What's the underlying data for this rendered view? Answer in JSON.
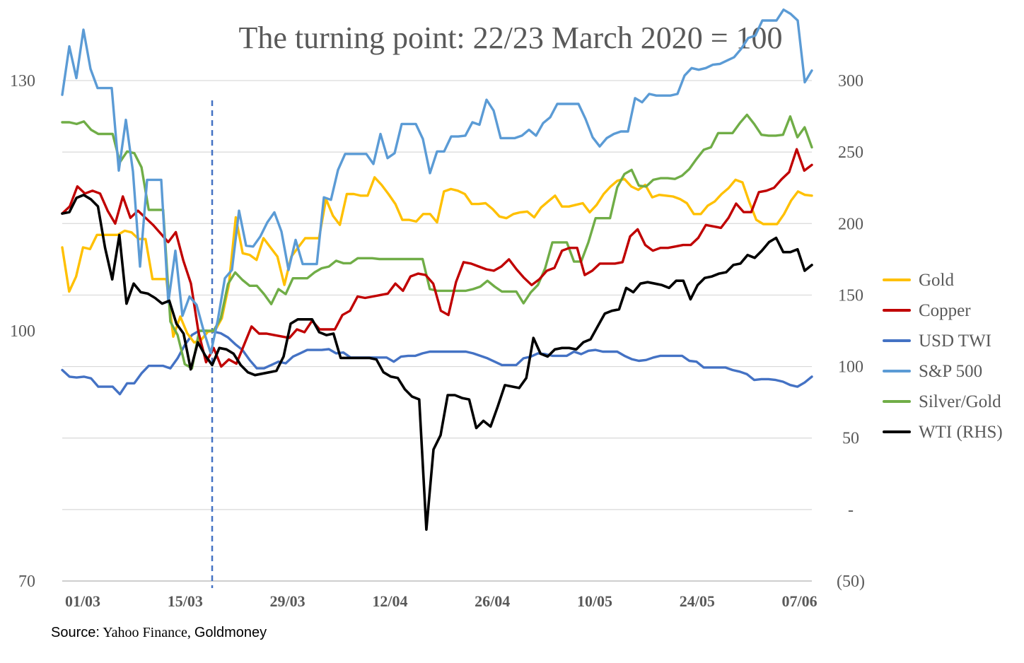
{
  "chart_data": {
    "type": "line",
    "title": "The turning point: 22/23 March 2020 = 100",
    "x_tick_labels": [
      "01/03",
      "15/03",
      "29/03",
      "12/04",
      "26/04",
      "10/05",
      "24/05",
      "07/06"
    ],
    "left_axis": {
      "ticks": [
        "70",
        "100",
        "130"
      ],
      "ylim": [
        70,
        130
      ]
    },
    "right_axis": {
      "ticks": [
        "(50)",
        "-",
        "50",
        "100",
        "150",
        "200",
        "250",
        "300"
      ],
      "ylim": [
        -50,
        300
      ]
    },
    "gridlines": "horizontal",
    "legend_position": "right",
    "marker": {
      "label": "22/23 March 2020 = 100",
      "style": "dashed vertical line",
      "color": "#4472C4"
    },
    "series": [
      {
        "name": "Gold",
        "axis": "left",
        "color": "#FFC000",
        "values": [
          110,
          104.7,
          106.5,
          110,
          109.8,
          111.5,
          111.5,
          111.5,
          111.5,
          112,
          111.8,
          111,
          111,
          106.2,
          106.2,
          106.2,
          99.3,
          101.7,
          99.7,
          98.6,
          98.9,
          99.9,
          100,
          101.5,
          105.5,
          113.6,
          109.3,
          109.1,
          108.5,
          111.1,
          110,
          108.9,
          105.5,
          108.9,
          110,
          111.1,
          111.1,
          111.1,
          115.8,
          113.8,
          112.7,
          116.4,
          116.4,
          116.2,
          116.2,
          118.4,
          117.5,
          116.4,
          115.2,
          113.3,
          113.3,
          113.1,
          114.0,
          114.0,
          113.0,
          116.7,
          117,
          116.8,
          116.4,
          115.2,
          115.2,
          115.3,
          114.6,
          113.7,
          113.5,
          114.0,
          114.2,
          114.3,
          113.6,
          114.8,
          115.5,
          116.2,
          114.9,
          114.9,
          115.1,
          115.3,
          114.2,
          115.1,
          116.4,
          117.3,
          118.0,
          118.2,
          117.3,
          116.9,
          117.5,
          116.0,
          116.3,
          116.2,
          116.1,
          115.8,
          115.3,
          114.0,
          114.0,
          115.0,
          115.5,
          116.4,
          117.1,
          118.1,
          117.8,
          115.4,
          113.3,
          112.8,
          112.8,
          112.8,
          114.0,
          115.6,
          116.7,
          116.3,
          116.2
        ]
      },
      {
        "name": "Copper",
        "axis": "right",
        "color": "#C00000",
        "values": [
          207,
          212,
          226,
          221,
          223,
          221,
          209,
          200,
          219,
          204,
          209,
          204,
          199,
          193,
          187,
          194,
          174,
          158,
          124,
          103,
          113,
          100,
          105,
          102,
          115,
          128,
          123,
          123,
          122,
          121,
          120,
          126,
          124,
          132,
          126,
          126,
          126,
          136,
          139,
          149,
          148,
          149,
          150,
          151,
          158,
          153,
          163,
          165,
          164,
          158,
          139,
          136,
          159,
          173,
          172,
          170,
          168,
          167,
          170,
          175,
          168,
          162,
          157,
          161,
          167,
          169,
          181,
          183,
          183,
          164,
          167,
          172,
          172,
          172,
          173,
          191,
          196,
          185,
          181,
          183,
          183,
          184,
          185,
          185,
          190,
          199,
          198,
          197,
          204,
          214,
          208,
          208,
          222,
          223,
          225,
          231,
          236,
          252,
          237,
          241
        ]
      },
      {
        "name": "USD TWI",
        "axis": "left",
        "color": "#4472C4",
        "values": [
          95.3,
          94.5,
          94.4,
          94.5,
          94.3,
          93.3,
          93.3,
          93.3,
          92.4,
          93.7,
          93.7,
          94.9,
          95.8,
          95.8,
          95.8,
          95.5,
          96.7,
          98.3,
          99.5,
          100,
          100,
          99.9,
          99.7,
          99.2,
          98.4,
          97.7,
          96.5,
          95.5,
          95.5,
          95.9,
          96.3,
          96.1,
          96.9,
          97.3,
          97.7,
          97.7,
          97.7,
          97.8,
          97.3,
          97.4,
          96.8,
          96.8,
          96.8,
          96.8,
          96.8,
          96.8,
          96.3,
          96.9,
          97.0,
          97.0,
          97.3,
          97.5,
          97.5,
          97.5,
          97.5,
          97.5,
          97.5,
          97.3,
          97.0,
          96.7,
          96.3,
          95.9,
          95.9,
          95.9,
          96.7,
          96.9,
          97.3,
          97.2,
          97.0,
          97.0,
          97.0,
          97.5,
          97.2,
          97.6,
          97.7,
          97.5,
          97.5,
          97.5,
          97.0,
          96.6,
          96.4,
          96.5,
          96.8,
          97.0,
          97.0,
          97.0,
          97.0,
          96.4,
          96.3,
          95.6,
          95.6,
          95.6,
          95.6,
          95.3,
          95.1,
          94.8,
          94.1,
          94.2,
          94.2,
          94.1,
          93.9,
          93.5,
          93.3,
          93.8,
          94.5
        ]
      },
      {
        "name": "S&P 500",
        "axis": "left",
        "color": "#5B9BD5",
        "values": [
          128.3,
          134.1,
          130.3,
          136.1,
          131.4,
          129.1,
          129.1,
          129.1,
          119.2,
          125.3,
          119.1,
          107.7,
          118.1,
          118.1,
          118.1,
          103.4,
          109.6,
          101.8,
          104.1,
          103.1,
          100,
          97.3,
          101.3,
          106.3,
          107.3,
          114.4,
          110.2,
          110.1,
          111.3,
          113.0,
          114.2,
          111.9,
          107.3,
          110.9,
          108,
          108,
          108,
          116,
          115.7,
          119.3,
          121.2,
          121.2,
          121.2,
          121.2,
          120.0,
          123.6,
          120.7,
          121.3,
          124.8,
          124.8,
          124.8,
          123.0,
          118.9,
          121.5,
          121.5,
          123.3,
          123.3,
          123.4,
          125.0,
          124.7,
          127.7,
          126.4,
          123.1,
          123.1,
          123.1,
          123.4,
          124.1,
          123.4,
          124.9,
          125.6,
          127.2,
          127.2,
          127.2,
          127.2,
          125.4,
          123.2,
          122.1,
          123.1,
          123.6,
          123.9,
          123.9,
          127.9,
          127.4,
          128.4,
          128.2,
          128.2,
          128.2,
          128.4,
          130.6,
          131.5,
          131.3,
          131.5,
          131.9,
          132.0,
          132.4,
          132.8,
          133.8,
          135.1,
          135.4,
          137.2,
          137.2,
          137.2,
          138.5,
          138.0,
          137.2,
          129.8,
          131.2
        ]
      },
      {
        "name": "Silver/Gold",
        "axis": "left",
        "color": "#70AD47",
        "values": [
          125.0,
          125.0,
          124.8,
          125.1,
          124.1,
          123.6,
          123.6,
          123.6,
          120.2,
          121.5,
          121.3,
          119.6,
          114.5,
          114.5,
          114.5,
          101.1,
          99.5,
          96.0,
          95.5,
          100.0,
          100.0,
          100.0,
          101.5,
          105.6,
          107.0,
          106.1,
          105.4,
          105.4,
          104.4,
          103.2,
          105.0,
          104.4,
          106.3,
          106.3,
          106.3,
          107.0,
          107.5,
          107.7,
          108.4,
          108.1,
          108.1,
          108.7,
          108.7,
          108.7,
          108.6,
          108.6,
          108.6,
          108.6,
          108.6,
          108.6,
          108.6,
          105.0,
          104.8,
          104.8,
          104.8,
          104.8,
          104.8,
          105.0,
          105.3,
          106.0,
          105.3,
          104.7,
          104.7,
          104.7,
          103.3,
          104.6,
          105.5,
          107.5,
          110.6,
          110.6,
          110.6,
          108.3,
          108.3,
          110.6,
          113.5,
          113.5,
          113.5,
          117.2,
          118.8,
          119.3,
          117.4,
          117.3,
          118.1,
          118.3,
          118.3,
          118.2,
          118.6,
          119.4,
          120.6,
          121.7,
          122.0,
          123.7,
          123.7,
          123.7,
          124.9,
          125.9,
          124.8,
          123.5,
          123.4,
          123.4,
          123.5,
          125.7,
          123.2,
          124.4,
          122.0
        ]
      },
      {
        "name": "WTI (RHS)",
        "axis": "right",
        "color": "#000000",
        "values": [
          207,
          208,
          218,
          220,
          217,
          212,
          183,
          161,
          192,
          144,
          158,
          152,
          151,
          148,
          144,
          146,
          130,
          123,
          98,
          117,
          108,
          101,
          113,
          112,
          109,
          101,
          96,
          94,
          95,
          96,
          97,
          107,
          130,
          133,
          133,
          133,
          124,
          122,
          123,
          106,
          106,
          106,
          106,
          106,
          105,
          96,
          93,
          92,
          84,
          79,
          77,
          -14,
          42,
          52,
          80,
          80,
          78,
          77,
          57,
          62,
          58,
          72,
          87,
          86,
          85,
          92,
          120,
          109,
          107,
          112,
          113,
          113,
          112,
          117,
          119,
          128,
          137,
          139,
          140,
          155,
          152,
          158,
          159,
          158,
          157,
          155,
          160,
          160,
          147,
          157,
          162,
          163,
          165,
          166,
          171,
          172,
          178,
          176,
          181,
          187,
          190,
          180,
          180,
          182,
          167,
          171
        ]
      }
    ]
  },
  "legend": {
    "items": [
      {
        "label": "Gold",
        "color": "#FFC000"
      },
      {
        "label": "Copper",
        "color": "#C00000"
      },
      {
        "label": "USD TWI",
        "color": "#4472C4"
      },
      {
        "label": "S&P 500",
        "color": "#5B9BD5"
      },
      {
        "label": "Silver/Gold",
        "color": "#70AD47"
      },
      {
        "label": "WTI (RHS)",
        "color": "#000000"
      }
    ]
  },
  "source": {
    "label": "Source:",
    "publishers": "Yahoo Finance",
    "separator": ",",
    "extra": "Goldmoney"
  }
}
